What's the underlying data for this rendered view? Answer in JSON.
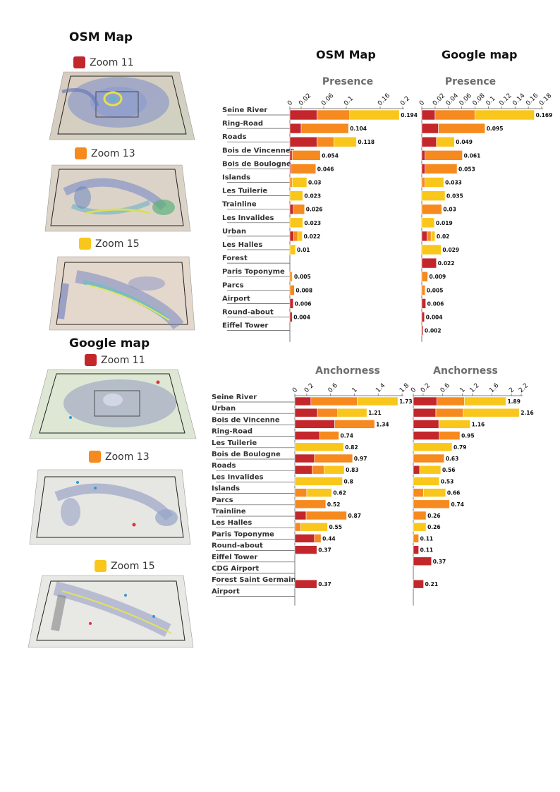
{
  "colors": {
    "zoom11": "#c3272b",
    "zoom13": "#f68a1e",
    "zoom15": "#f9c71b",
    "axis": "#555555"
  },
  "left_panel": {
    "osm_title": "OSM Map",
    "google_title": "Google map",
    "legend": {
      "zoom11": "Zoom 11",
      "zoom13": "Zoom 13",
      "zoom15": "Zoom 15"
    }
  },
  "headers": {
    "osm": "OSM Map",
    "google": "Google map"
  },
  "chart_data": [
    {
      "type": "bar",
      "orientation": "horizontal",
      "stacked": true,
      "title": "Presence",
      "column": "OSM Map",
      "series": [
        {
          "name": "Zoom 11"
        },
        {
          "name": "Zoom 13"
        },
        {
          "name": "Zoom 15"
        }
      ],
      "ticks": [
        "0",
        "0.02",
        "0.06",
        "0.1",
        "0.16",
        "0.2"
      ],
      "tick_values": [
        0,
        0.02,
        0.06,
        0.1,
        0.16,
        0.2
      ],
      "xlim": [
        0,
        0.2
      ],
      "categories": [
        "Seine River",
        "Ring-Road",
        "Roads",
        "Bois de Vincennes",
        "Bois de Boulogne",
        "Islands",
        "Les Tuilerie",
        "Trainline",
        "Les Invalides",
        "Urban",
        "Les Halles",
        "Forest",
        "Paris Toponyme",
        "Parcs",
        "Airport",
        "Round-about",
        "Eiffel Tower"
      ],
      "stacks": [
        [
          0.048,
          0.058,
          0.088
        ],
        [
          0.02,
          0.084,
          0
        ],
        [
          0.048,
          0.03,
          0.04
        ],
        [
          0.004,
          0.05,
          0
        ],
        [
          0.002,
          0.044,
          0
        ],
        [
          0,
          0.004,
          0.026
        ],
        [
          0,
          0,
          0.023
        ],
        [
          0.006,
          0.02,
          0
        ],
        [
          0,
          0,
          0.023
        ],
        [
          0.007,
          0.007,
          0.008
        ],
        [
          0,
          0,
          0.01
        ],
        [
          0,
          0,
          0
        ],
        [
          0,
          0.004,
          0.001
        ],
        [
          0,
          0.008,
          0
        ],
        [
          0.006,
          0,
          0
        ],
        [
          0.004,
          0,
          0
        ],
        [
          0,
          0,
          0
        ]
      ],
      "totals": [
        "0.194",
        "0.104",
        "0.118",
        "0.054",
        "0.046",
        "0.03",
        "0.023",
        "0.026",
        "0.023",
        "0.022",
        "0.01",
        "",
        "0.005",
        "0.008",
        "0.006",
        "0.004",
        ""
      ]
    },
    {
      "type": "bar",
      "orientation": "horizontal",
      "stacked": true,
      "title": "Presence",
      "column": "Google map",
      "series": [
        {
          "name": "Zoom 11"
        },
        {
          "name": "Zoom 13"
        },
        {
          "name": "Zoom 15"
        }
      ],
      "ticks": [
        "0",
        "0.02",
        "0.04",
        "0.06",
        "0.08",
        "0.1",
        "0.12",
        "0.14",
        "0.16",
        "0.18"
      ],
      "tick_values": [
        0,
        0.02,
        0.04,
        0.06,
        0.08,
        0.1,
        0.12,
        0.14,
        0.16,
        0.18
      ],
      "xlim": [
        0,
        0.18
      ],
      "categories": [
        "Seine River",
        "Ring-Road",
        "Roads",
        "Bois de Vincennes",
        "Bois de Boulogne",
        "Islands",
        "Les Tuilerie",
        "Trainline",
        "Les Invalides",
        "Urban",
        "Les Halles",
        "Forest",
        "Paris Toponyme",
        "Parcs",
        "Airport",
        "Round-about",
        "Eiffel Tower"
      ],
      "stacks": [
        [
          0.02,
          0.06,
          0.089
        ],
        [
          0.025,
          0.07,
          0
        ],
        [
          0.022,
          0,
          0.027
        ],
        [
          0.005,
          0.056,
          0
        ],
        [
          0.005,
          0.048,
          0
        ],
        [
          0,
          0.005,
          0.028
        ],
        [
          0,
          0,
          0.035
        ],
        [
          0,
          0.03,
          0
        ],
        [
          0,
          0,
          0.019
        ],
        [
          0.008,
          0.006,
          0.006
        ],
        [
          0,
          0,
          0.029
        ],
        [
          0.022,
          0,
          0
        ],
        [
          0,
          0.009,
          0
        ],
        [
          0,
          0.005,
          0
        ],
        [
          0.006,
          0,
          0
        ],
        [
          0.004,
          0,
          0
        ],
        [
          0.002,
          0,
          0
        ]
      ],
      "totals": [
        "0.169",
        "0.095",
        "0.049",
        "0.061",
        "0.053",
        "0.033",
        "0.035",
        "0.03",
        "0.019",
        "0.02",
        "0.029",
        "0.022",
        "0.009",
        "0.005",
        "0.006",
        "0.004",
        "0.002"
      ]
    },
    {
      "type": "bar",
      "orientation": "horizontal",
      "stacked": true,
      "title": "Anchorness",
      "column": "OSM Map",
      "series": [
        {
          "name": "Zoom 11"
        },
        {
          "name": "Zoom 13"
        },
        {
          "name": "Zoom 15"
        }
      ],
      "ticks": [
        "0",
        "0.2",
        "0.6",
        "1",
        "1.4",
        "1.8"
      ],
      "tick_values": [
        0,
        0.2,
        0.6,
        1,
        1.4,
        1.8
      ],
      "xlim": [
        0,
        1.8
      ],
      "categories": [
        "Seine River",
        "Urban",
        "Bois de Vincenne",
        "Ring-Road",
        "Les Tuilerie",
        "Bois de Boulogne",
        "Roads",
        "Les Invalides",
        "Islands",
        "Parcs",
        "Trainline",
        "Les Halles",
        "Paris Toponyme",
        "Round-about",
        "Eiffel Tower",
        "CDG Airport",
        "Forest Saint Germain",
        "Airport"
      ],
      "stacks": [
        [
          0.27,
          0.78,
          0.68
        ],
        [
          0.38,
          0.34,
          0.49
        ],
        [
          0.67,
          0.67,
          0
        ],
        [
          0.42,
          0.32,
          0
        ],
        [
          0,
          0,
          0.82
        ],
        [
          0.33,
          0.64,
          0
        ],
        [
          0.29,
          0.2,
          0.34
        ],
        [
          0,
          0,
          0.8
        ],
        [
          0,
          0.2,
          0.42
        ],
        [
          0,
          0.52,
          0
        ],
        [
          0.19,
          0.68,
          0
        ],
        [
          0,
          0.1,
          0.45
        ],
        [
          0.33,
          0.11,
          0
        ],
        [
          0.37,
          0,
          0
        ],
        [
          0,
          0,
          0
        ],
        [
          0,
          0,
          0
        ],
        [
          0.37,
          0,
          0
        ],
        [
          0,
          0,
          0
        ]
      ],
      "totals": [
        "1.73",
        "1.21",
        "1.34",
        "0.74",
        "0.82",
        "0.97",
        "0.83",
        "0.8",
        "0.62",
        "0.52",
        "0.87",
        "0.55",
        "0.44",
        "0.37",
        "",
        "",
        "0.37",
        ""
      ]
    },
    {
      "type": "bar",
      "orientation": "horizontal",
      "stacked": true,
      "title": "Anchorness",
      "column": "Google map",
      "series": [
        {
          "name": "Zoom 11"
        },
        {
          "name": "Zoom 13"
        },
        {
          "name": "Zoom 15"
        }
      ],
      "ticks": [
        "0",
        "0.2",
        "0.6",
        "1",
        "1.2",
        "1.6",
        "2",
        "2.2"
      ],
      "tick_values": [
        0,
        0.2,
        0.6,
        1,
        1.2,
        1.6,
        2,
        2.2
      ],
      "xlim": [
        0,
        2.2
      ],
      "categories": [
        "Seine River",
        "Urban",
        "Bois de Vincenne",
        "Ring-Road",
        "Les Tuilerie",
        "Bois de Boulogne",
        "Roads",
        "Les Invalides",
        "Islands",
        "Parcs",
        "Trainline",
        "Les Halles",
        "Paris Toponyme",
        "Round-about",
        "Eiffel Tower",
        "CDG Airport",
        "Forest Saint Germain",
        "Airport"
      ],
      "stacks": [
        [
          0.48,
          0.56,
          0.85
        ],
        [
          0.46,
          0.56,
          1.14
        ],
        [
          0.52,
          0,
          0.64
        ],
        [
          0.53,
          0.42,
          0
        ],
        [
          0,
          0,
          0.79
        ],
        [
          0,
          0.63,
          0
        ],
        [
          0.13,
          0,
          0.43
        ],
        [
          0,
          0,
          0.53
        ],
        [
          0,
          0.21,
          0.45
        ],
        [
          0,
          0.74,
          0
        ],
        [
          0,
          0.26,
          0
        ],
        [
          0,
          0,
          0.26
        ],
        [
          0,
          0.11,
          0
        ],
        [
          0.11,
          0,
          0
        ],
        [
          0.37,
          0,
          0
        ],
        [
          0,
          0,
          0
        ],
        [
          0.21,
          0,
          0
        ],
        [
          0,
          0,
          0
        ]
      ],
      "totals": [
        "1.89",
        "2.16",
        "1.16",
        "0.95",
        "0.79",
        "0.63",
        "0.56",
        "0.53",
        "0.66",
        "0.74",
        "0.26",
        "0.26",
        "0.11",
        "0.11",
        "0.37",
        "",
        "0.21",
        ""
      ]
    }
  ]
}
